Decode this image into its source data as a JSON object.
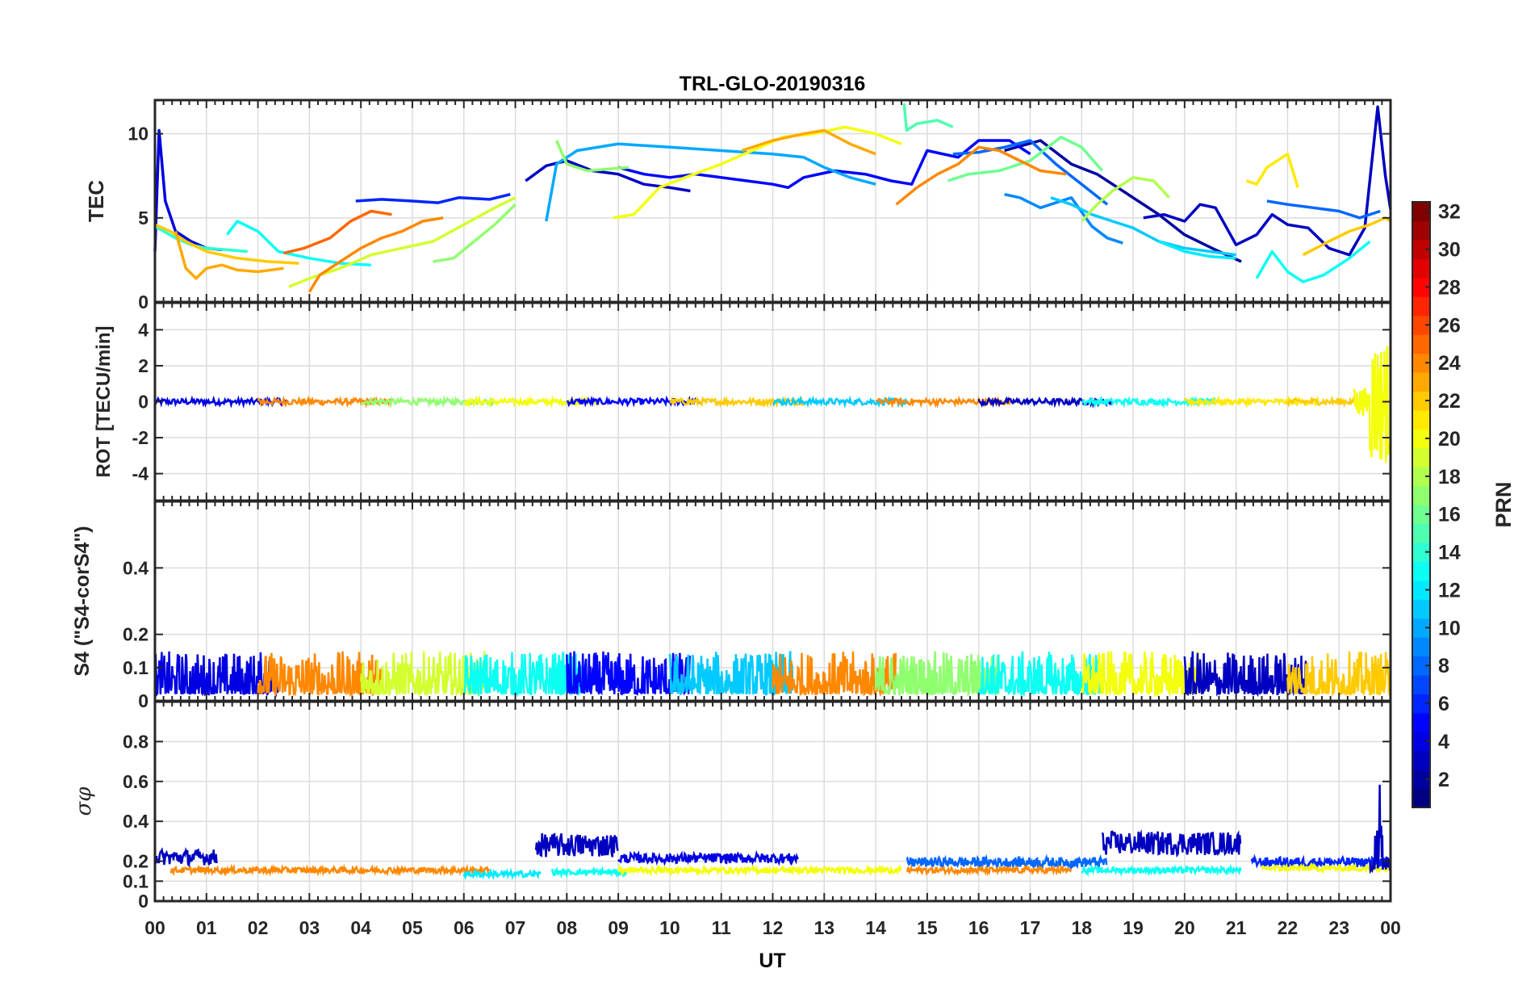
{
  "chart_data": {
    "type": "line",
    "title": "TRL-GLO-20190316",
    "xlabel": "UT",
    "x_ticks": [
      "00",
      "01",
      "02",
      "03",
      "04",
      "05",
      "06",
      "07",
      "08",
      "09",
      "10",
      "11",
      "12",
      "13",
      "14",
      "15",
      "16",
      "17",
      "18",
      "19",
      "20",
      "21",
      "22",
      "23",
      "00"
    ],
    "xlim": [
      0,
      24
    ],
    "grid": true,
    "colorbar": {
      "label": "PRN",
      "colormap": "jet",
      "range": [
        1,
        32
      ],
      "ticks": [
        2,
        4,
        6,
        8,
        10,
        12,
        14,
        16,
        18,
        20,
        22,
        24,
        26,
        28,
        30,
        32
      ]
    },
    "panels": [
      {
        "name": "tec",
        "ylabel": "TEC",
        "ylim": [
          0,
          12
        ],
        "yticks": [
          0,
          5,
          10
        ],
        "series": [
          {
            "prn": 2,
            "x": [
              16.5,
              17.2,
              17.8,
              18.3,
              18.9,
              19.5,
              20.0,
              20.6,
              21.1
            ],
            "y": [
              9.0,
              9.6,
              8.2,
              7.6,
              6.4,
              5.2,
              4.0,
              3.1,
              2.4
            ]
          },
          {
            "prn": 3,
            "x": [
              7.2,
              7.6,
              8.0,
              8.5,
              9.0,
              9.5,
              10.0,
              10.4
            ],
            "y": [
              7.2,
              8.1,
              8.4,
              7.8,
              7.6,
              7.0,
              6.8,
              6.6
            ]
          },
          {
            "prn": 3,
            "x": [
              19.2,
              19.6,
              20.0,
              20.3,
              20.6,
              21.0,
              21.4,
              21.7,
              22.0,
              22.4,
              22.8,
              23.2,
              23.5,
              23.75,
              23.9,
              24.0
            ],
            "y": [
              5.0,
              5.2,
              4.8,
              5.8,
              5.6,
              3.4,
              4.0,
              5.2,
              4.6,
              4.4,
              3.2,
              2.8,
              4.4,
              11.6,
              7.5,
              5.5
            ]
          },
          {
            "prn": 4,
            "x": [
              0.0,
              0.08,
              0.2,
              0.4,
              0.7,
              1.0,
              1.3
            ],
            "y": [
              3.0,
              10.2,
              6.0,
              4.2,
              3.6,
              3.2,
              3.1
            ]
          },
          {
            "prn": 5,
            "x": [
              9.0,
              9.5,
              10.0,
              10.5,
              11.0,
              11.5,
              12.0,
              12.3,
              12.6,
              13.2,
              13.8,
              14.3,
              14.7,
              15.0,
              15.6,
              16.0,
              16.6,
              17.0
            ],
            "y": [
              8.0,
              7.6,
              7.4,
              7.6,
              7.4,
              7.2,
              7.0,
              6.8,
              7.4,
              7.8,
              7.6,
              7.2,
              7.0,
              9.0,
              8.6,
              9.6,
              9.6,
              8.8
            ]
          },
          {
            "prn": 6,
            "x": [
              3.9,
              4.4,
              5.0,
              5.5,
              5.9,
              6.5,
              6.9
            ],
            "y": [
              6.0,
              6.1,
              6.0,
              5.9,
              6.2,
              6.1,
              6.4
            ]
          },
          {
            "prn": 8,
            "x": [
              21.6,
              22.0,
              22.5,
              23.0,
              23.4,
              23.8
            ],
            "y": [
              6.0,
              5.8,
              5.6,
              5.4,
              5.0,
              5.4
            ]
          },
          {
            "prn": 8,
            "x": [
              15.5,
              16.0,
              16.5,
              17.0,
              17.5,
              18.0,
              18.5
            ],
            "y": [
              8.8,
              8.9,
              9.2,
              9.6,
              8.2,
              7.0,
              5.8
            ]
          },
          {
            "prn": 9,
            "x": [
              16.5,
              16.8,
              17.2,
              17.8,
              18.2,
              18.5,
              18.8
            ],
            "y": [
              6.4,
              6.2,
              5.6,
              6.2,
              4.5,
              3.8,
              3.5
            ]
          },
          {
            "prn": 10,
            "x": [
              7.6,
              7.8,
              8.2,
              9.0,
              10.0,
              11.0,
              12.0,
              12.6,
              13.0,
              13.5,
              14.0
            ],
            "y": [
              4.8,
              8.2,
              9.0,
              9.4,
              9.2,
              9.0,
              8.8,
              8.6,
              8.0,
              7.4,
              7.0
            ]
          },
          {
            "prn": 11,
            "x": [
              17.4,
              17.8,
              18.2,
              18.6,
              19.0,
              19.5,
              20.0,
              20.5,
              21.0
            ],
            "y": [
              6.2,
              5.8,
              5.2,
              4.8,
              4.4,
              3.6,
              3.2,
              3.0,
              2.8
            ]
          },
          {
            "prn": 12,
            "x": [
              19.5,
              20.0,
              20.5,
              21.0
            ],
            "y": [
              3.6,
              3.0,
              2.7,
              2.6
            ]
          },
          {
            "prn": 13,
            "x": [
              1.4,
              1.6,
              2.0,
              2.4,
              3.0,
              3.6,
              4.2
            ],
            "y": [
              4.0,
              4.8,
              4.2,
              3.0,
              2.6,
              2.3,
              2.2
            ]
          },
          {
            "prn": 13,
            "x": [
              21.4,
              21.7,
              22.0,
              22.3,
              22.7,
              23.2,
              23.6
            ],
            "y": [
              1.4,
              3.0,
              1.8,
              1.2,
              1.6,
              2.6,
              3.6
            ]
          },
          {
            "prn": 14,
            "x": [
              0.0,
              0.4,
              0.7,
              1.0,
              1.4,
              1.8
            ],
            "y": [
              4.5,
              3.8,
              3.4,
              3.2,
              3.1,
              3.0
            ]
          },
          {
            "prn": 15,
            "x": [
              14.55,
              14.6,
              14.8,
              15.2,
              15.5
            ],
            "y": [
              11.8,
              10.2,
              10.6,
              10.8,
              10.4
            ]
          },
          {
            "prn": 16,
            "x": [
              15.4,
              15.8,
              16.4,
              17.0,
              17.6,
              18.0,
              18.4
            ],
            "y": [
              7.2,
              7.6,
              7.8,
              8.4,
              9.8,
              9.2,
              7.8
            ]
          },
          {
            "prn": 17,
            "x": [
              5.4,
              5.8,
              6.2,
              6.6,
              7.0
            ],
            "y": [
              2.4,
              2.6,
              3.6,
              4.6,
              5.8
            ]
          },
          {
            "prn": 17,
            "x": [
              7.8,
              8.0,
              8.4,
              8.8,
              9.2
            ],
            "y": [
              9.6,
              8.2,
              7.8,
              7.9,
              8.0
            ]
          },
          {
            "prn": 18,
            "x": [
              18.0,
              18.3,
              18.6,
              19.0,
              19.4,
              19.7
            ],
            "y": [
              4.8,
              5.8,
              6.6,
              7.4,
              7.2,
              6.2
            ]
          },
          {
            "prn": 19,
            "x": [
              2.6,
              3.0,
              3.6,
              4.2,
              4.8,
              5.4,
              6.0,
              6.6,
              7.0
            ],
            "y": [
              0.9,
              1.4,
              2.0,
              2.8,
              3.2,
              3.6,
              4.6,
              5.6,
              6.2
            ]
          },
          {
            "prn": 20,
            "x": [
              8.9,
              9.3,
              9.8,
              10.3,
              11.0,
              11.6,
              12.2,
              12.8,
              13.4,
              14.0,
              14.5
            ],
            "y": [
              5.0,
              5.2,
              6.8,
              7.4,
              8.2,
              9.0,
              9.8,
              10.0,
              10.4,
              10.0,
              9.4
            ]
          },
          {
            "prn": 21,
            "x": [
              21.2,
              21.4,
              21.6,
              21.8,
              22.0,
              22.2
            ],
            "y": [
              7.2,
              7.0,
              8.0,
              8.4,
              8.8,
              6.8
            ]
          },
          {
            "prn": 22,
            "x": [
              0.0,
              0.3,
              0.6,
              1.0,
              1.6,
              2.2,
              2.8
            ],
            "y": [
              4.6,
              4.2,
              3.6,
              3.0,
              2.6,
              2.4,
              2.3
            ]
          },
          {
            "prn": 22,
            "x": [
              22.3,
              22.8,
              23.2,
              23.6,
              23.9,
              24.0
            ],
            "y": [
              2.8,
              3.6,
              4.2,
              4.6,
              5.0,
              4.8
            ]
          },
          {
            "prn": 23,
            "x": [
              11.4,
              12.0,
              12.6,
              13.0,
              13.5,
              14.0
            ],
            "y": [
              9.0,
              9.6,
              10.0,
              10.2,
              9.4,
              8.8
            ]
          },
          {
            "prn": 23,
            "x": [
              0.4,
              0.6,
              0.8,
              1.0,
              1.3,
              1.6,
              2.0,
              2.5
            ],
            "y": [
              4.2,
              2.0,
              1.4,
              2.0,
              2.2,
              1.9,
              1.8,
              2.0
            ]
          },
          {
            "prn": 24,
            "x": [
              3.0,
              3.2,
              3.6,
              4.0,
              4.4,
              4.8,
              5.2,
              5.6
            ],
            "y": [
              0.6,
              1.6,
              2.4,
              3.2,
              3.8,
              4.2,
              4.8,
              5.0
            ]
          },
          {
            "prn": 24,
            "x": [
              14.4,
              14.8,
              15.2,
              15.6,
              16.0,
              16.4,
              16.8,
              17.2,
              17.7
            ],
            "y": [
              5.8,
              6.8,
              7.6,
              8.2,
              9.2,
              9.0,
              8.4,
              7.8,
              7.6
            ]
          },
          {
            "prn": 25,
            "x": [
              2.5,
              2.9,
              3.4,
              3.8,
              4.2,
              4.6
            ],
            "y": [
              2.9,
              3.2,
              3.8,
              4.8,
              5.4,
              5.2
            ]
          }
        ]
      },
      {
        "name": "rot",
        "ylabel": "ROT [TECU/min]",
        "ylim": [
          -5.5,
          5.5
        ],
        "yticks": [
          -4,
          -2,
          0,
          2,
          4
        ]
      },
      {
        "name": "s4",
        "ylabel": "S4 (\"S4-corS4\")",
        "ylim": [
          0,
          0.6
        ],
        "yticks": [
          0,
          0.1,
          0.2,
          0.4
        ]
      },
      {
        "name": "sigma_phi",
        "ylabel": "σφ",
        "ylim": [
          0,
          1.0
        ],
        "yticks": [
          0,
          0.1,
          0.2,
          0.4,
          0.6,
          0.8
        ]
      }
    ]
  }
}
